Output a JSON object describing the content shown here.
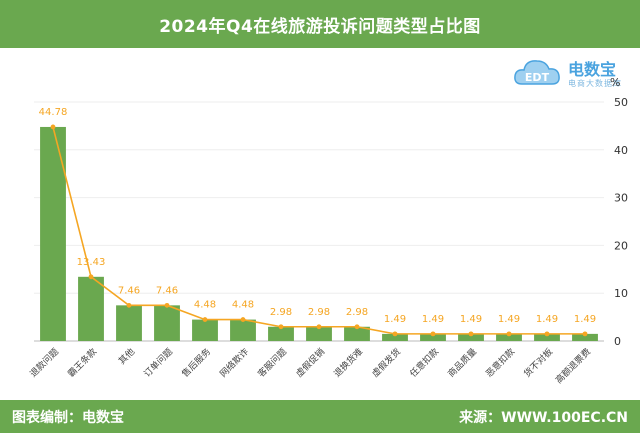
{
  "header": {
    "title": "2024年Q4在线旅游投诉问题类型占比图"
  },
  "footer": {
    "left": "图表编制：电数宝",
    "right": "来源：WWW.100EC.CN"
  },
  "logo": {
    "icon_text": "EDT",
    "brand": "电数宝",
    "tagline": "电商大数据库"
  },
  "colors": {
    "bar": "#6aa84f",
    "line": "#f5a623",
    "header": "#6aa84f"
  },
  "chart_data": {
    "type": "bar",
    "categories": [
      "退款问题",
      "霸王条款",
      "其他",
      "订单问题",
      "售后服务",
      "网络欺诈",
      "客服问题",
      "虚假促销",
      "退换货难",
      "虚假发货",
      "任意扣款",
      "商品质量",
      "恶意扣款",
      "货不对板",
      "高额退票费"
    ],
    "values": [
      44.78,
      13.43,
      7.46,
      7.46,
      4.48,
      4.48,
      2.98,
      2.98,
      2.98,
      1.49,
      1.49,
      1.49,
      1.49,
      1.49,
      1.49
    ],
    "series": [
      {
        "values": [
          44.78,
          13.43,
          7.46,
          7.46,
          4.48,
          4.48,
          2.98,
          2.98,
          2.98,
          1.49,
          1.49,
          1.49,
          1.49,
          1.49,
          1.49
        ]
      }
    ],
    "line_overlay": true,
    "ylim": [
      0,
      50
    ],
    "yticks": [
      0,
      10,
      20,
      30,
      40,
      50
    ],
    "yunit": "%",
    "yaxis_side": "right",
    "grid": true
  }
}
